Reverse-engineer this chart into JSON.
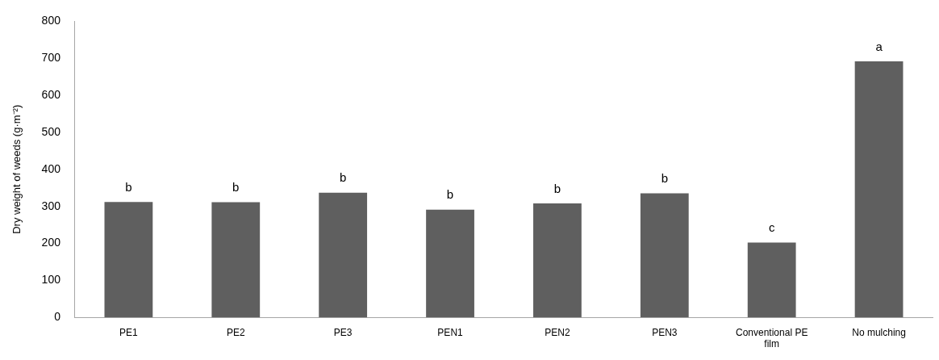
{
  "chart_data": {
    "type": "bar",
    "ylabel": "Dry weight of weeds (g·m⁻²)",
    "categories": [
      "PE1",
      "PE2",
      "PE3",
      "PEN1",
      "PEN2",
      "PEN3",
      "Conventional PE film",
      "No mulching"
    ],
    "values": [
      312,
      311,
      337,
      291,
      308,
      335,
      202,
      692
    ],
    "color": "#5f5f5f",
    "ylim": [
      0,
      800
    ],
    "yticks": [
      0,
      100,
      200,
      300,
      400,
      500,
      600,
      700,
      800
    ],
    "grid": false,
    "legend": false,
    "annotations": [
      {
        "text": "b",
        "x": "PE1",
        "y": 312
      },
      {
        "text": "b",
        "x": "PE2",
        "y": 311
      },
      {
        "text": "b",
        "x": "PE3",
        "y": 337
      },
      {
        "text": "b",
        "x": "PEN1",
        "y": 291
      },
      {
        "text": "b",
        "x": "PEN2",
        "y": 308
      },
      {
        "text": "b",
        "x": "PEN3",
        "y": 335
      },
      {
        "text": "c",
        "x": "Conventional PE film",
        "y": 202
      },
      {
        "text": "a",
        "x": "No mulching",
        "y": 692
      }
    ]
  }
}
